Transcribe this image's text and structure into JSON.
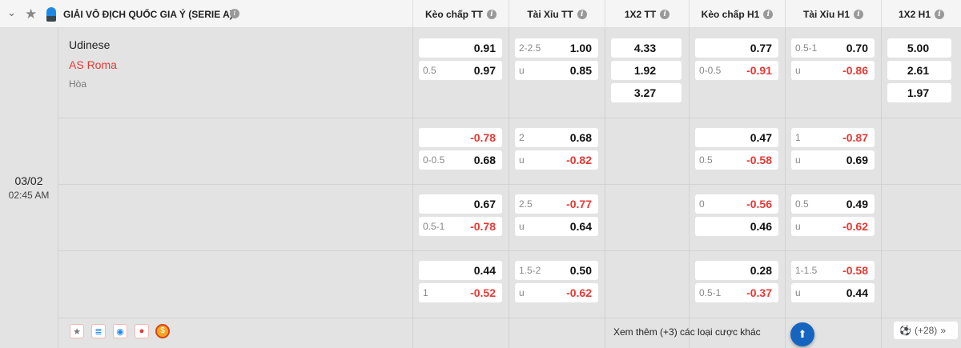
{
  "league": {
    "title": "GIẢI VÔ ĐỊCH QUỐC GIA Ý (SERIE A)",
    "icons": [
      "chevron-down-icon",
      "star-icon",
      "league-logo",
      "info-icon"
    ]
  },
  "columns": [
    "Kèo chấp TT",
    "Tài Xỉu TT",
    "1X2 TT",
    "Kèo chấp H1",
    "Tài Xỉu H1",
    "1X2 H1"
  ],
  "match": {
    "home": "Udinese",
    "away": "AS Roma",
    "draw": "Hòa",
    "date": "03/02",
    "time": "02:45 AM"
  },
  "rows": [
    {
      "hdp_tt": [
        [
          "",
          "0.91"
        ],
        [
          "0.5",
          "0.97"
        ]
      ],
      "ou_tt": [
        [
          "2-2.5",
          "1.00"
        ],
        [
          "u",
          "0.85"
        ]
      ],
      "x12_tt": [
        "4.33",
        "1.92",
        "3.27"
      ],
      "hdp_h1": [
        [
          "",
          "0.77"
        ],
        [
          "0-0.5",
          "-0.91"
        ]
      ],
      "ou_h1": [
        [
          "0.5-1",
          "0.70"
        ],
        [
          "u",
          "-0.86"
        ]
      ],
      "x12_h1": [
        "5.00",
        "2.61",
        "1.97"
      ]
    },
    {
      "hdp_tt": [
        [
          "",
          "-0.78"
        ],
        [
          "0-0.5",
          "0.68"
        ]
      ],
      "ou_tt": [
        [
          "2",
          "0.68"
        ],
        [
          "u",
          "-0.82"
        ]
      ],
      "hdp_h1": [
        [
          "",
          "0.47"
        ],
        [
          "0.5",
          "-0.58"
        ]
      ],
      "ou_h1": [
        [
          "1",
          "-0.87"
        ],
        [
          "u",
          "0.69"
        ]
      ]
    },
    {
      "hdp_tt": [
        [
          "",
          "0.67"
        ],
        [
          "0.5-1",
          "-0.78"
        ]
      ],
      "ou_tt": [
        [
          "2.5",
          "-0.77"
        ],
        [
          "u",
          "0.64"
        ]
      ],
      "hdp_h1": [
        [
          "0",
          "-0.56"
        ],
        [
          "",
          "0.46"
        ]
      ],
      "ou_h1": [
        [
          "0.5",
          "0.49"
        ],
        [
          "u",
          "-0.62"
        ]
      ]
    },
    {
      "hdp_tt": [
        [
          "",
          "0.44"
        ],
        [
          "1",
          "-0.52"
        ]
      ],
      "ou_tt": [
        [
          "1.5-2",
          "0.50"
        ],
        [
          "u",
          "-0.62"
        ]
      ],
      "hdp_h1": [
        [
          "",
          "0.28"
        ],
        [
          "0.5-1",
          "-0.37"
        ]
      ],
      "ou_h1": [
        [
          "1-1.5",
          "-0.58"
        ],
        [
          "u",
          "0.44"
        ]
      ]
    }
  ],
  "footer": {
    "more": "Xem thêm (+3) các loại cược khác",
    "count": "(+28)",
    "icons": [
      "star-icon",
      "database-icon",
      "eye-icon",
      "fire-icon",
      "coin-icon"
    ]
  },
  "colors": {
    "negative": "#e53935",
    "away": "#e53935",
    "scroll_button": "#1565c0"
  }
}
